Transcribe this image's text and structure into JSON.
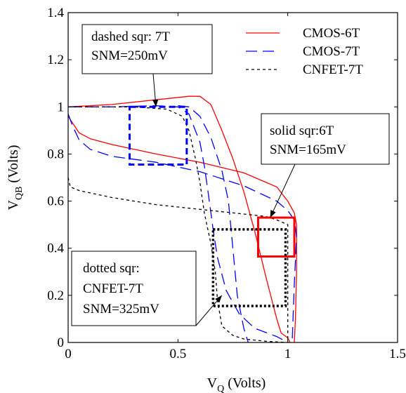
{
  "chart_data": {
    "type": "line",
    "xlabel": {
      "main": "V",
      "sub": "Q",
      "rest": " (Volts)"
    },
    "ylabel": {
      "main": "V",
      "sub": "QB",
      "rest": " (Volts)"
    },
    "xlim": [
      0,
      1.5
    ],
    "ylim": [
      0,
      1.4
    ],
    "xticks": [
      "0",
      "0.5",
      "1",
      "1.5"
    ],
    "yticks": [
      "0",
      "0.2",
      "0.4",
      "0.6",
      "0.8",
      "1",
      "1.2",
      "1.4"
    ],
    "grid": false,
    "legend_position": "top-right",
    "series": [
      {
        "name": "CMOS-6T",
        "color": "#ff0000",
        "dash": "solid",
        "curves": [
          [
            [
              0,
              1.0
            ],
            [
              0.2,
              1.01
            ],
            [
              0.4,
              1.03
            ],
            [
              0.55,
              1.045
            ],
            [
              0.6,
              1.045
            ],
            [
              0.65,
              1.01
            ],
            [
              0.7,
              0.9
            ],
            [
              0.75,
              0.78
            ],
            [
              0.8,
              0.64
            ],
            [
              0.85,
              0.47
            ],
            [
              0.9,
              0.28
            ],
            [
              0.95,
              0.1
            ],
            [
              0.97,
              0.04
            ],
            [
              1.0,
              0.02
            ],
            [
              1.01,
              0.0
            ]
          ],
          [
            [
              0,
              0.96
            ],
            [
              0.05,
              0.89
            ],
            [
              0.1,
              0.865
            ],
            [
              0.2,
              0.84
            ],
            [
              0.4,
              0.8
            ],
            [
              0.6,
              0.765
            ],
            [
              0.8,
              0.72
            ],
            [
              0.95,
              0.66
            ],
            [
              1.0,
              0.6
            ],
            [
              1.03,
              0.55
            ],
            [
              1.04,
              0.5
            ],
            [
              1.04,
              0.3
            ],
            [
              1.035,
              0.1
            ],
            [
              1.03,
              0.0
            ]
          ]
        ]
      },
      {
        "name": "CMOS-7T",
        "color": "#0000ff",
        "dash": "long-dash",
        "curves": [
          [
            [
              0,
              1.0
            ],
            [
              0.2,
              1.0
            ],
            [
              0.4,
              1.005
            ],
            [
              0.5,
              1.0
            ],
            [
              0.55,
              0.97
            ],
            [
              0.6,
              0.85
            ],
            [
              0.62,
              0.75
            ],
            [
              0.64,
              0.62
            ],
            [
              0.66,
              0.48
            ],
            [
              0.68,
              0.36
            ],
            [
              0.72,
              0.22
            ],
            [
              0.78,
              0.12
            ],
            [
              0.85,
              0.06
            ],
            [
              0.95,
              0.025
            ],
            [
              1.0,
              0.0
            ]
          ],
          [
            [
              0,
              0.97
            ],
            [
              0.02,
              0.92
            ],
            [
              0.05,
              0.86
            ],
            [
              0.1,
              0.82
            ],
            [
              0.2,
              0.79
            ],
            [
              0.4,
              0.765
            ],
            [
              0.6,
              0.725
            ],
            [
              0.8,
              0.665
            ],
            [
              0.95,
              0.6
            ],
            [
              1.0,
              0.56
            ],
            [
              1.03,
              0.52
            ],
            [
              1.04,
              0.45
            ],
            [
              1.03,
              0.25
            ],
            [
              1.02,
              0.0
            ]
          ],
          [
            [
              0.5,
              1.005
            ],
            [
              0.55,
              1.0
            ],
            [
              0.6,
              0.96
            ],
            [
              0.65,
              0.87
            ],
            [
              0.7,
              0.73
            ],
            [
              0.73,
              0.6
            ],
            [
              0.75,
              0.4
            ],
            [
              0.77,
              0.2
            ],
            [
              0.8,
              0.06
            ],
            [
              0.82,
              0.0
            ]
          ]
        ]
      },
      {
        "name": "CNFET-7T",
        "color": "#000000",
        "dash": "short-dash",
        "curves": [
          [
            [
              0,
              1.0
            ],
            [
              0.1,
              1.0
            ],
            [
              0.3,
              1.0
            ],
            [
              0.45,
              0.99
            ],
            [
              0.52,
              0.96
            ],
            [
              0.55,
              0.9
            ],
            [
              0.58,
              0.78
            ],
            [
              0.6,
              0.68
            ],
            [
              0.62,
              0.55
            ],
            [
              0.65,
              0.42
            ],
            [
              0.67,
              0.3
            ],
            [
              0.68,
              0.18
            ],
            [
              0.7,
              0.07
            ],
            [
              0.75,
              0.03
            ],
            [
              0.8,
              0.015
            ],
            [
              0.9,
              0.005
            ],
            [
              1.0,
              0.0
            ]
          ],
          [
            [
              0,
              0.7
            ],
            [
              0.01,
              0.66
            ],
            [
              0.05,
              0.645
            ],
            [
              0.2,
              0.615
            ],
            [
              0.4,
              0.585
            ],
            [
              0.6,
              0.565
            ],
            [
              0.8,
              0.545
            ],
            [
              0.9,
              0.535
            ],
            [
              0.95,
              0.52
            ],
            [
              1.0,
              0.5
            ],
            [
              1.0,
              0.3
            ],
            [
              1.0,
              0.1
            ],
            [
              1.0,
              0.0
            ]
          ]
        ]
      }
    ],
    "squares": [
      {
        "label": "dashed sqr",
        "color": "#0000ff",
        "dash": "heavy-dash",
        "x": [
          0.28,
          0.54
        ],
        "y": [
          0.755,
          1.0
        ]
      },
      {
        "label": "solid sqr",
        "color": "#ff0000",
        "dash": "solid",
        "x": [
          0.865,
          1.03
        ],
        "y": [
          0.365,
          0.53
        ]
      },
      {
        "label": "dotted sqr",
        "color": "#000000",
        "dash": "dotted",
        "x": [
          0.66,
          0.99
        ],
        "y": [
          0.155,
          0.48
        ]
      }
    ],
    "legend": [
      {
        "label": "CMOS-6T",
        "color": "#ff0000",
        "dash": "solid"
      },
      {
        "label": "CMOS-7T",
        "color": "#0000ff",
        "dash": "long-dash"
      },
      {
        "label": "CNFET-7T",
        "color": "#000000",
        "dash": "short-dash"
      }
    ],
    "annotations": [
      {
        "lines": [
          "dashed sqr: 7T",
          "SNM=250mV"
        ],
        "arrow_to": [
          0.4,
          1.0
        ]
      },
      {
        "lines": [
          "solid sqr:6T",
          "SNM=165mV"
        ],
        "arrow_to": [
          0.92,
          0.53
        ]
      },
      {
        "lines": [
          "dotted sqr:",
          "CNFET-7T",
          "SNM=325mV"
        ],
        "arrow_to": [
          0.7,
          0.2
        ]
      }
    ]
  }
}
